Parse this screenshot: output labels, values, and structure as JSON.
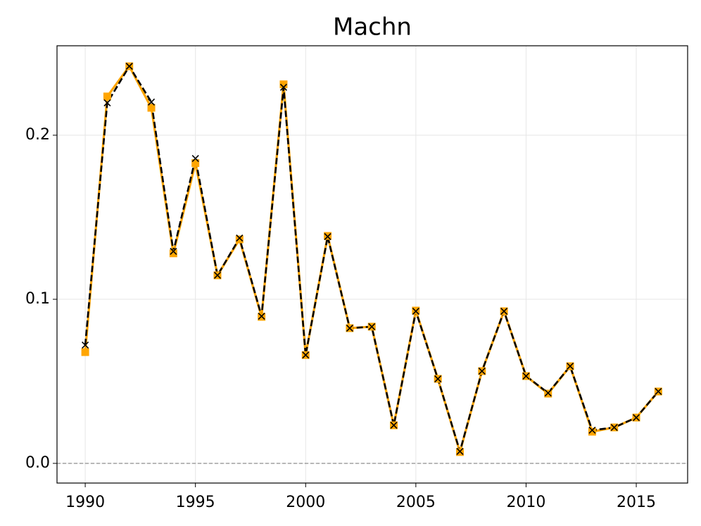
{
  "chart_data": {
    "type": "line",
    "title": "Machn",
    "x": [
      1990,
      1991,
      1992,
      1993,
      1994,
      1995,
      1996,
      1997,
      1998,
      1999,
      2000,
      2001,
      2002,
      2003,
      2004,
      2005,
      2006,
      2007,
      2008,
      2009,
      2010,
      2011,
      2012,
      2013,
      2014,
      2015,
      2016
    ],
    "series": [
      {
        "color": "#ffa500",
        "marker": "square",
        "linestyle": "solid",
        "values": [
          0.0678,
          0.2236,
          0.242,
          0.2167,
          0.128,
          0.183,
          0.1146,
          0.1365,
          0.0893,
          0.231,
          0.066,
          0.1386,
          0.0824,
          0.0833,
          0.0232,
          0.0931,
          0.0515,
          0.0069,
          0.0562,
          0.0927,
          0.0532,
          0.0425,
          0.0592,
          0.0193,
          0.0219,
          0.0279,
          0.0438
        ]
      },
      {
        "color": "#000000",
        "marker": "x",
        "linestyle": "dashed",
        "values": [
          0.0721,
          0.2197,
          0.242,
          0.2202,
          0.1292,
          0.1858,
          0.1146,
          0.1373,
          0.0897,
          0.2292,
          0.066,
          0.1382,
          0.0824,
          0.0833,
          0.0232,
          0.0927,
          0.0515,
          0.0073,
          0.0562,
          0.0927,
          0.0532,
          0.0429,
          0.0592,
          0.0202,
          0.0219,
          0.0279,
          0.0438
        ]
      }
    ],
    "xlim": [
      1988.72,
      2017.33
    ],
    "ylim": [
      -0.012,
      0.2545
    ],
    "xticks": [
      1990,
      1995,
      2000,
      2005,
      2010,
      2015
    ],
    "yticks": [
      {
        "value": 0,
        "label": "0.0"
      },
      0.1,
      0.2
    ],
    "grid": true,
    "reference_line": 0
  }
}
